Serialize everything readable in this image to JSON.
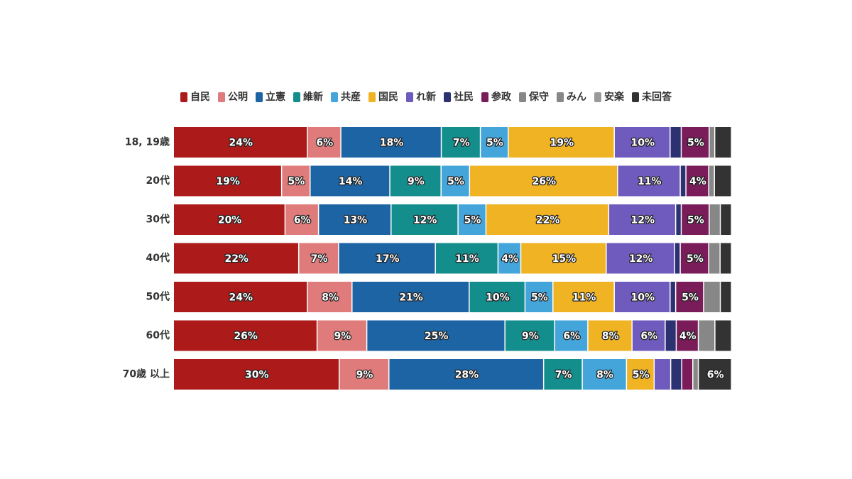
{
  "chart_data": {
    "type": "bar",
    "orientation": "horizontal",
    "stacked": true,
    "title": "",
    "xlabel": "",
    "ylabel": "",
    "grid": false,
    "legend_position": "top",
    "categories": [
      "18, 19歳",
      "20代",
      "30代",
      "40代",
      "50代",
      "60代",
      "70歳 以上"
    ],
    "series": [
      {
        "name": "自民",
        "color": "#ad1a1a",
        "values": [
          24,
          19,
          20,
          22,
          24,
          26,
          30
        ]
      },
      {
        "name": "公明",
        "color": "#e07b7b",
        "values": [
          6,
          5,
          6,
          7,
          8,
          9,
          9
        ]
      },
      {
        "name": "立憲",
        "color": "#1c64a4",
        "values": [
          18,
          14,
          13,
          17,
          21,
          25,
          28
        ]
      },
      {
        "name": "維新",
        "color": "#138e8c",
        "values": [
          7,
          9,
          12,
          11,
          10,
          9,
          7
        ]
      },
      {
        "name": "共産",
        "color": "#44a5db",
        "values": [
          5,
          5,
          5,
          4,
          5,
          6,
          8
        ]
      },
      {
        "name": "国民",
        "color": "#efb324",
        "values": [
          19,
          26,
          22,
          15,
          11,
          8,
          5
        ]
      },
      {
        "name": "れ新",
        "color": "#6f5bbd",
        "values": [
          10,
          11,
          12,
          12,
          10,
          6,
          3
        ]
      },
      {
        "name": "社民",
        "color": "#2c3172",
        "values": [
          2,
          1,
          1,
          1,
          1,
          2,
          2
        ]
      },
      {
        "name": "参政",
        "color": "#7a1c5a",
        "values": [
          5,
          4,
          5,
          5,
          5,
          4,
          2
        ]
      },
      {
        "name": "保守",
        "color": "#878787",
        "values": [
          1,
          0,
          0,
          0,
          0,
          0,
          0
        ]
      },
      {
        "name": "みん",
        "color": "#878787",
        "values": [
          0,
          1,
          2,
          2,
          3,
          3,
          1
        ]
      },
      {
        "name": "安楽",
        "color": "#9a9a9a",
        "values": [
          0,
          0,
          0,
          0,
          0,
          0,
          0
        ]
      },
      {
        "name": "未回答",
        "color": "#333333",
        "values": [
          3,
          3,
          2,
          2,
          2,
          3,
          6
        ]
      }
    ],
    "data_labels_shown_min_percent": 4,
    "value_suffix": "%"
  }
}
